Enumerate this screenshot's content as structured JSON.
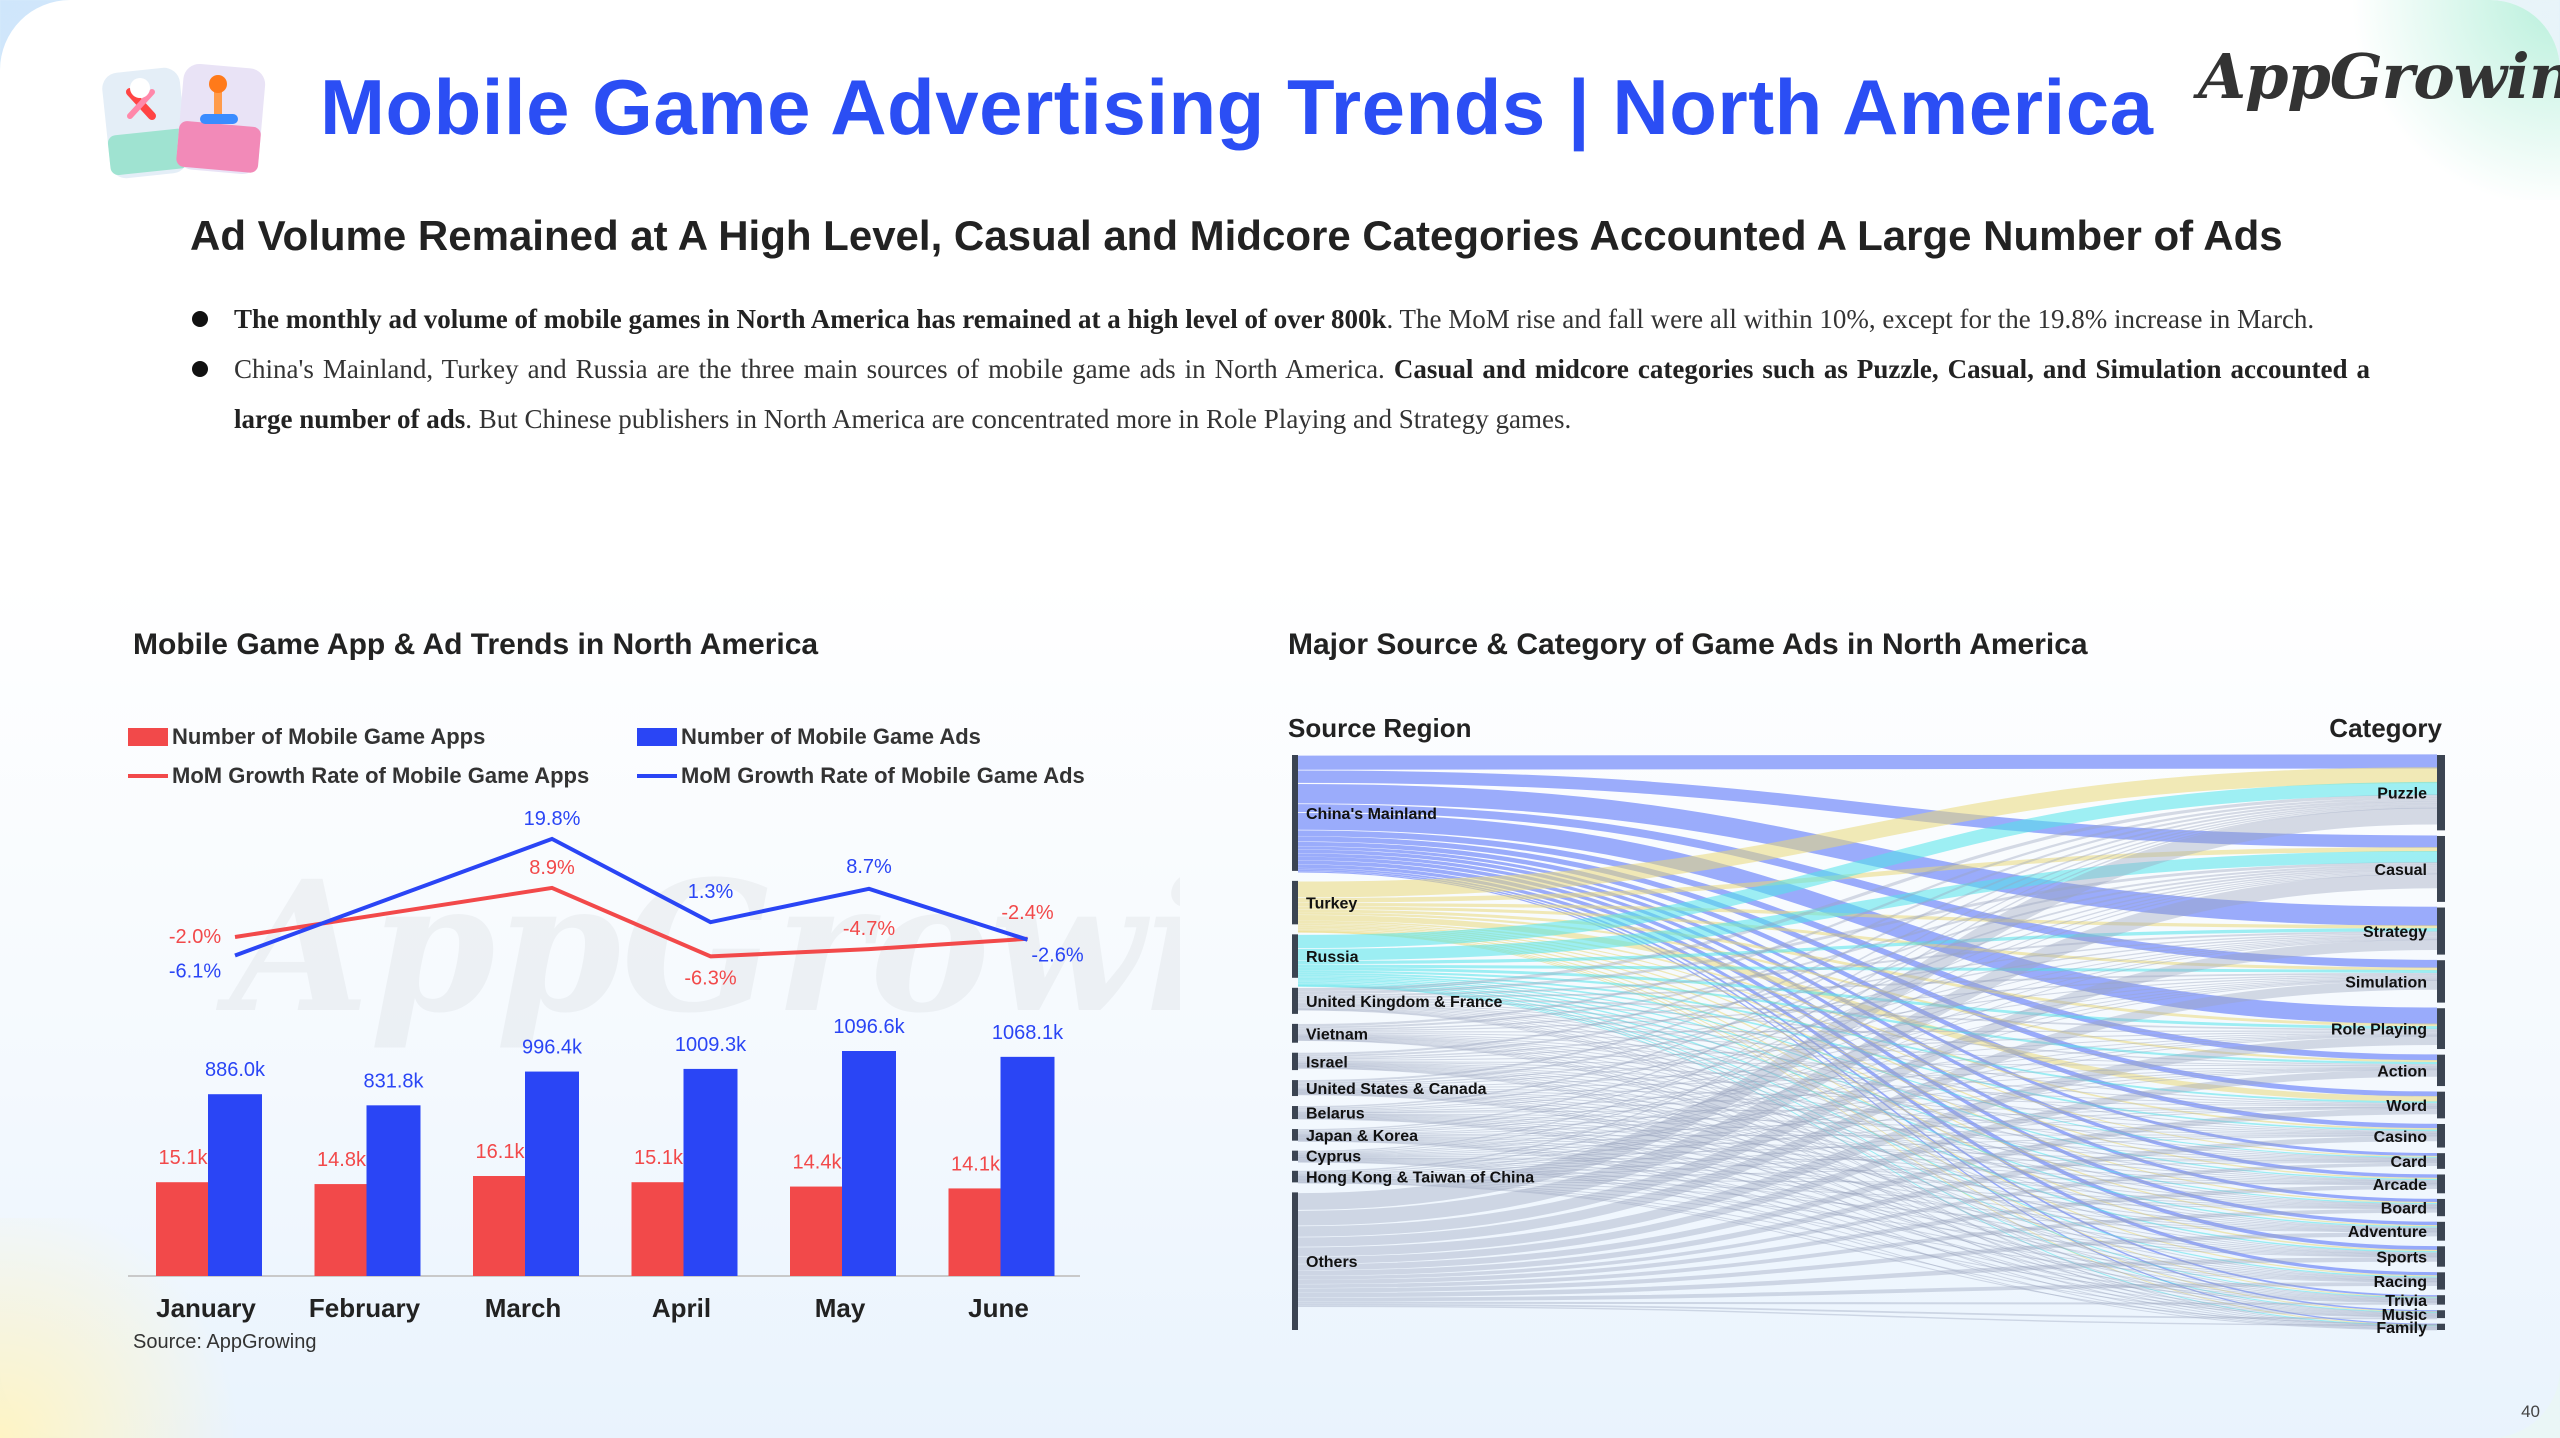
{
  "header": {
    "title": "Mobile Game Advertising Trends | North America",
    "logo_text": "AppGrowing",
    "subtitle": "Ad Volume Remained at A High Level, Casual and Midcore Categories Accounted A Large Number of Ads"
  },
  "bullets": [
    {
      "bold": "The monthly ad volume of mobile games in North America has remained at a high level of over 800k",
      "rest": ". The MoM rise and fall were all within 10%, except for the 19.8% increase in March."
    },
    {
      "pre": "China's Mainland, Turkey and Russia are the three main sources of mobile game ads in North America. ",
      "bold": "Casual and midcore categories such as Puzzle, Casual, and Simulation accounted a large number of ads",
      "rest": ". But Chinese publishers in North America  are concentrated more in Role Playing and Strategy games."
    }
  ],
  "colors": {
    "title_blue": "#2b4ef4",
    "apps_red": "#f2494a",
    "ads_blue": "#2a45f5"
  },
  "chart_data": [
    {
      "type": "bar",
      "title": "Mobile Game App & Ad Trends in North America",
      "categories": [
        "January",
        "February",
        "March",
        "April",
        "May",
        "June"
      ],
      "series": [
        {
          "name": "Number of Mobile Game Apps",
          "kind": "bar",
          "values": [
            15.1,
            14.8,
            16.1,
            15.1,
            14.4,
            14.1
          ],
          "labels": [
            "15.1k",
            "14.8k",
            "16.1k",
            "15.1k",
            "14.4k",
            "14.1k"
          ]
        },
        {
          "name": "Number of Mobile Game Ads",
          "kind": "bar",
          "values": [
            886.0,
            831.8,
            996.4,
            1009.3,
            1096.6,
            1068.1
          ],
          "labels": [
            "886.0k",
            "831.8k",
            "996.4k",
            "1009.3k",
            "1096.6k",
            "1068.1k"
          ]
        },
        {
          "name": "MoM Growth Rate of Mobile Game Apps",
          "kind": "line",
          "values": [
            -2.0,
            8.9,
            -6.3,
            -4.7,
            -2.4
          ],
          "x": [
            "January",
            "March",
            "April",
            "May",
            "June"
          ],
          "labels": [
            "-2.0%",
            "8.9%",
            "-6.3%",
            "-4.7%",
            "-2.4%"
          ]
        },
        {
          "name": "MoM Growth Rate of Mobile Game Ads",
          "kind": "line",
          "values": [
            -6.1,
            19.8,
            1.3,
            8.7,
            -2.6
          ],
          "x": [
            "January",
            "March",
            "April",
            "May",
            "June"
          ],
          "labels": [
            "-6.1%",
            "19.8%",
            "1.3%",
            "8.7%",
            "-2.6%"
          ]
        }
      ],
      "source": "Source: AppGrowing"
    },
    {
      "type": "sankey",
      "title": "Major Source & Category of Game Ads in North America",
      "left_header": "Source Region",
      "right_header": "Category",
      "sources": [
        {
          "name": "China's Mainland",
          "weight": 80,
          "color": "#4d6af8"
        },
        {
          "name": "Turkey",
          "weight": 30,
          "color": "#ead97a"
        },
        {
          "name": "Russia",
          "weight": 30,
          "color": "#52e4ea"
        },
        {
          "name": "United Kingdom & France",
          "weight": 18,
          "color": "#9aa6bd"
        },
        {
          "name": "Vietnam",
          "weight": 13,
          "color": "#9aa6bd"
        },
        {
          "name": "Israel",
          "weight": 12,
          "color": "#9aa6bd"
        },
        {
          "name": "United States & Canada",
          "weight": 11,
          "color": "#9aa6bd"
        },
        {
          "name": "Belarus",
          "weight": 9,
          "color": "#9aa6bd"
        },
        {
          "name": "Japan & Korea",
          "weight": 8,
          "color": "#9aa6bd"
        },
        {
          "name": "Cyprus",
          "weight": 7,
          "color": "#9aa6bd"
        },
        {
          "name": "Hong Kong & Taiwan of China",
          "weight": 8,
          "color": "#9aa6bd"
        },
        {
          "name": "Others",
          "weight": 95,
          "color": "#9aa6bd"
        }
      ],
      "categories": [
        {
          "name": "Puzzle",
          "weight": 48
        },
        {
          "name": "Casual",
          "weight": 42
        },
        {
          "name": "Strategy",
          "weight": 30
        },
        {
          "name": "Simulation",
          "weight": 27
        },
        {
          "name": "Role Playing",
          "weight": 26
        },
        {
          "name": "Action",
          "weight": 20
        },
        {
          "name": "Word",
          "weight": 17
        },
        {
          "name": "Casino",
          "weight": 15
        },
        {
          "name": "Card",
          "weight": 10
        },
        {
          "name": "Arcade",
          "weight": 12
        },
        {
          "name": "Board",
          "weight": 11
        },
        {
          "name": "Adventure",
          "weight": 12
        },
        {
          "name": "Sports",
          "weight": 13
        },
        {
          "name": "Racing",
          "weight": 11
        },
        {
          "name": "Trivia",
          "weight": 6
        },
        {
          "name": "Music",
          "weight": 5
        },
        {
          "name": "Family",
          "weight": 4
        }
      ]
    }
  ],
  "page_number": "40"
}
